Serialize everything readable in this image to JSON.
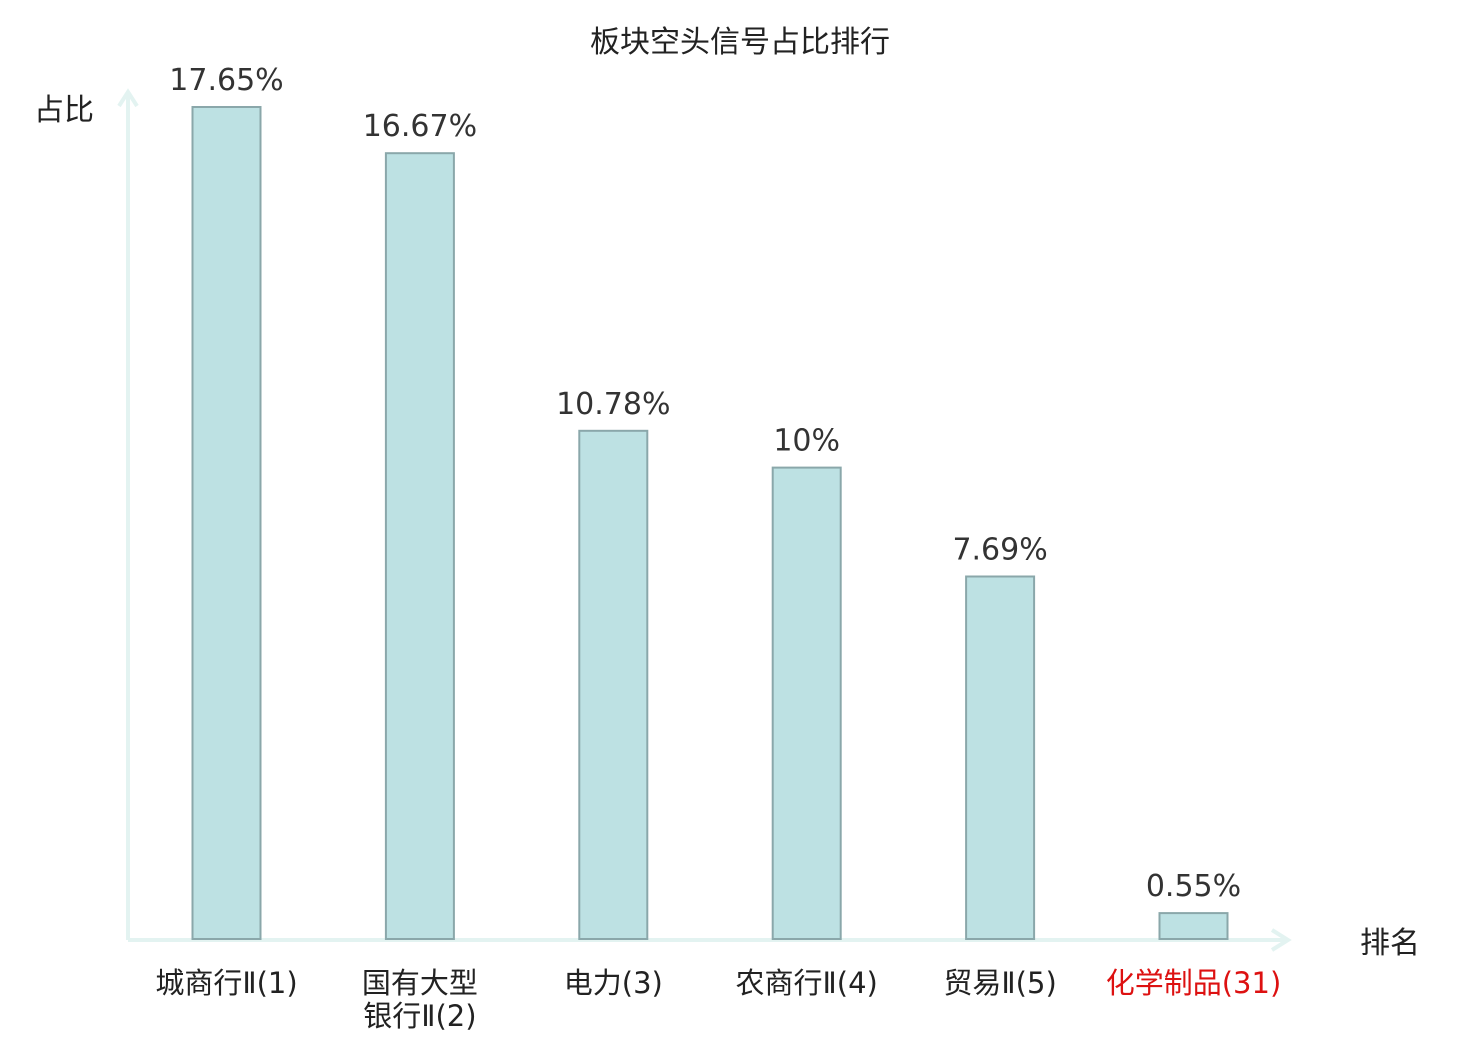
{
  "chart_data": {
    "type": "bar",
    "title": "板块空头信号占比排行",
    "ylabel": "占比",
    "xlabel": "排名",
    "categories": [
      [
        "城商行Ⅱ(1)"
      ],
      [
        "国有大型",
        "银行Ⅱ(2)"
      ],
      [
        "电力(3)"
      ],
      [
        "农商行Ⅱ(4)"
      ],
      [
        "贸易Ⅱ(5)"
      ],
      [
        "化学制品(31)"
      ]
    ],
    "values": [
      17.65,
      16.67,
      10.78,
      10,
      7.69,
      0.55
    ],
    "value_labels": [
      "17.65%",
      "16.67%",
      "10.78%",
      "10%",
      "7.69%",
      "0.55%"
    ],
    "highlight_index": 5,
    "ylim": [
      0,
      17.65
    ],
    "grid": false,
    "legend": "none"
  },
  "colors": {
    "bar_fill": "#bde1e3",
    "bar_stroke": "#8aa7aa",
    "axis": "#e3f3f1",
    "text": "#222222",
    "highlight_text": "#dd1111"
  }
}
